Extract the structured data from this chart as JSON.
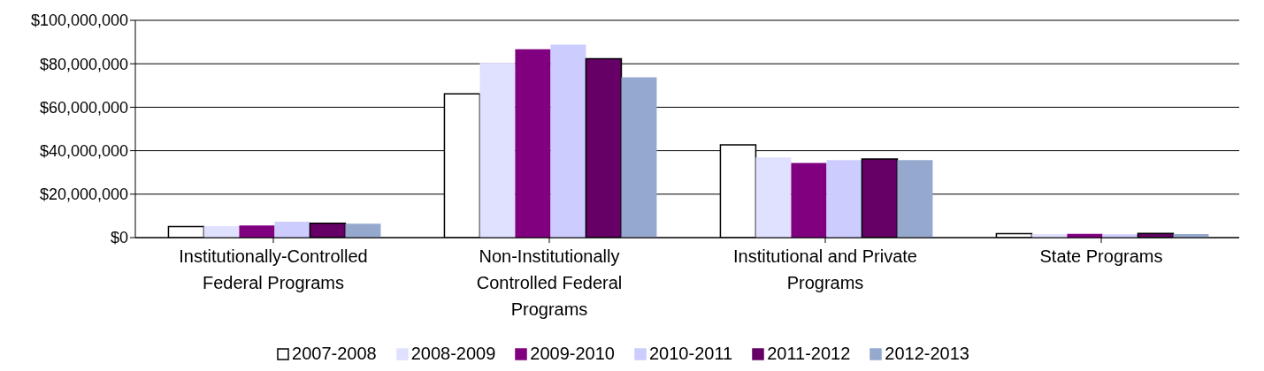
{
  "chart_data": {
    "type": "bar",
    "categories": [
      "Institutionally-Controlled Federal Programs",
      "Non-Institutionally Controlled Federal Programs",
      "Institutional and Private Programs",
      "State Programs"
    ],
    "series": [
      {
        "name": "2007-2008",
        "color": "#ffffff",
        "values": [
          5100000,
          66200000,
          42700000,
          1800000
        ]
      },
      {
        "name": "2008-2009",
        "color": "#e0e0ff",
        "values": [
          5300000,
          80400000,
          36900000,
          1600000
        ]
      },
      {
        "name": "2009-2010",
        "color": "#800080",
        "values": [
          5600000,
          86700000,
          34300000,
          1700000
        ]
      },
      {
        "name": "2010-2011",
        "color": "#ccccff",
        "values": [
          7300000,
          88800000,
          35700000,
          1500000
        ]
      },
      {
        "name": "2011-2012",
        "color": "#660066",
        "values": [
          6600000,
          82300000,
          36200000,
          1900000
        ]
      },
      {
        "name": "2012-2013",
        "color": "#95a9cf",
        "values": [
          6400000,
          73800000,
          35700000,
          1600000
        ]
      }
    ],
    "ylim": [
      0,
      100000000
    ],
    "yticks": [
      {
        "value": 0,
        "label": "$0"
      },
      {
        "value": 20000000,
        "label": "$20,000,000"
      },
      {
        "value": 40000000,
        "label": "$40,000,000"
      },
      {
        "value": 60000000,
        "label": "$60,000,000"
      },
      {
        "value": 80000000,
        "label": "$80,000,000"
      },
      {
        "value": 100000000,
        "label": "$100,000,000"
      }
    ],
    "grid": "y",
    "legend": "bottom"
  }
}
